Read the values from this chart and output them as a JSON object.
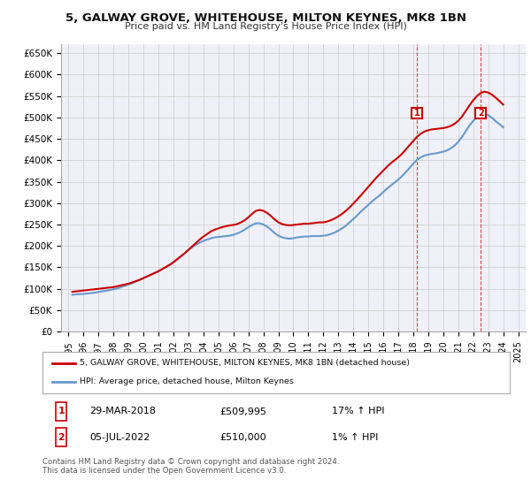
{
  "title": "5, GALWAY GROVE, WHITEHOUSE, MILTON KEYNES, MK8 1BN",
  "subtitle": "Price paid vs. HM Land Registry's House Price Index (HPI)",
  "ylabel_ticks": [
    "£0",
    "£50K",
    "£100K",
    "£150K",
    "£200K",
    "£250K",
    "£300K",
    "£350K",
    "£400K",
    "£450K",
    "£500K",
    "£550K",
    "£600K",
    "£650K"
  ],
  "ytick_vals": [
    0,
    50000,
    100000,
    150000,
    200000,
    250000,
    300000,
    350000,
    400000,
    450000,
    500000,
    550000,
    600000,
    650000
  ],
  "xlim": [
    1994.5,
    2025.5
  ],
  "ylim": [
    0,
    670000
  ],
  "house_color": "#cc0000",
  "hpi_color": "#6699cc",
  "marker1_color": "#cc0000",
  "marker2_color": "#cc0000",
  "legend_house": "5, GALWAY GROVE, WHITEHOUSE, MILTON KEYNES, MK8 1BN (detached house)",
  "legend_hpi": "HPI: Average price, detached house, Milton Keynes",
  "annotation1_label": "1",
  "annotation1_date": "29-MAR-2018",
  "annotation1_price": "£509,995",
  "annotation1_hpi": "17% ↑ HPI",
  "annotation2_label": "2",
  "annotation2_date": "05-JUL-2022",
  "annotation2_price": "£510,000",
  "annotation2_hpi": "1% ↑ HPI",
  "footer": "Contains HM Land Registry data © Crown copyright and database right 2024.\nThis data is licensed under the Open Government Licence v3.0.",
  "house_years": [
    1995.25,
    1995.5,
    1995.75,
    1996.0,
    1996.25,
    1996.5,
    1996.75,
    1997.0,
    1997.25,
    1997.5,
    1997.75,
    1998.0,
    1998.25,
    1998.5,
    1998.75,
    1999.0,
    1999.25,
    1999.5,
    1999.75,
    2000.0,
    2000.25,
    2000.5,
    2000.75,
    2001.0,
    2001.25,
    2001.5,
    2001.75,
    2002.0,
    2002.25,
    2002.5,
    2002.75,
    2003.0,
    2003.25,
    2003.5,
    2003.75,
    2004.0,
    2004.25,
    2004.5,
    2004.75,
    2005.0,
    2005.25,
    2005.5,
    2005.75,
    2006.0,
    2006.25,
    2006.5,
    2006.75,
    2007.0,
    2007.25,
    2007.5,
    2007.75,
    2008.0,
    2008.25,
    2008.5,
    2008.75,
    2009.0,
    2009.25,
    2009.5,
    2009.75,
    2010.0,
    2010.25,
    2010.5,
    2010.75,
    2011.0,
    2011.25,
    2011.5,
    2011.75,
    2012.0,
    2012.25,
    2012.5,
    2012.75,
    2013.0,
    2013.25,
    2013.5,
    2013.75,
    2014.0,
    2014.25,
    2014.5,
    2014.75,
    2015.0,
    2015.25,
    2015.5,
    2015.75,
    2016.0,
    2016.25,
    2016.5,
    2016.75,
    2017.0,
    2017.25,
    2017.5,
    2017.75,
    2018.0,
    2018.25,
    2018.5,
    2018.75,
    2019.0,
    2019.25,
    2019.5,
    2019.75,
    2020.0,
    2020.25,
    2020.5,
    2020.75,
    2021.0,
    2021.25,
    2021.5,
    2021.75,
    2022.0,
    2022.25,
    2022.5,
    2022.75,
    2023.0,
    2023.25,
    2023.5,
    2023.75,
    2024.0
  ],
  "house_prices": [
    93000,
    94000,
    95000,
    96000,
    97000,
    98000,
    99000,
    100000,
    101000,
    102000,
    103000,
    104000,
    106000,
    108000,
    110000,
    112000,
    115000,
    118000,
    121000,
    125000,
    129000,
    133000,
    137000,
    141000,
    146000,
    151000,
    156000,
    162000,
    169000,
    176000,
    183000,
    191000,
    199000,
    207000,
    215000,
    222000,
    228000,
    234000,
    238000,
    241000,
    244000,
    246000,
    248000,
    249000,
    251000,
    255000,
    260000,
    267000,
    275000,
    282000,
    284000,
    282000,
    277000,
    270000,
    262000,
    255000,
    251000,
    249000,
    248000,
    249000,
    250000,
    251000,
    252000,
    252000,
    253000,
    254000,
    255000,
    255000,
    257000,
    260000,
    264000,
    269000,
    275000,
    282000,
    290000,
    299000,
    308000,
    318000,
    328000,
    338000,
    348000,
    358000,
    367000,
    376000,
    385000,
    393000,
    400000,
    407000,
    415000,
    425000,
    435000,
    445000,
    455000,
    462000,
    467000,
    470000,
    472000,
    473000,
    474000,
    475000,
    477000,
    480000,
    485000,
    492000,
    502000,
    515000,
    528000,
    540000,
    550000,
    557000,
    560000,
    558000,
    553000,
    546000,
    538000,
    530000
  ],
  "hpi_years": [
    1995.25,
    1995.5,
    1995.75,
    1996.0,
    1996.25,
    1996.5,
    1996.75,
    1997.0,
    1997.25,
    1997.5,
    1997.75,
    1998.0,
    1998.25,
    1998.5,
    1998.75,
    1999.0,
    1999.25,
    1999.5,
    1999.75,
    2000.0,
    2000.25,
    2000.5,
    2000.75,
    2001.0,
    2001.25,
    2001.5,
    2001.75,
    2002.0,
    2002.25,
    2002.5,
    2002.75,
    2003.0,
    2003.25,
    2003.5,
    2003.75,
    2004.0,
    2004.25,
    2004.5,
    2004.75,
    2005.0,
    2005.25,
    2005.5,
    2005.75,
    2006.0,
    2006.25,
    2006.5,
    2006.75,
    2007.0,
    2007.25,
    2007.5,
    2007.75,
    2008.0,
    2008.25,
    2008.5,
    2008.75,
    2009.0,
    2009.25,
    2009.5,
    2009.75,
    2010.0,
    2010.25,
    2010.5,
    2010.75,
    2011.0,
    2011.25,
    2011.5,
    2011.75,
    2012.0,
    2012.25,
    2012.5,
    2012.75,
    2013.0,
    2013.25,
    2013.5,
    2013.75,
    2014.0,
    2014.25,
    2014.5,
    2014.75,
    2015.0,
    2015.25,
    2015.5,
    2015.75,
    2016.0,
    2016.25,
    2016.5,
    2016.75,
    2017.0,
    2017.25,
    2017.5,
    2017.75,
    2018.0,
    2018.25,
    2018.5,
    2018.75,
    2019.0,
    2019.25,
    2019.5,
    2019.75,
    2020.0,
    2020.25,
    2020.5,
    2020.75,
    2021.0,
    2021.25,
    2021.5,
    2021.75,
    2022.0,
    2022.25,
    2022.5,
    2022.75,
    2023.0,
    2023.25,
    2023.5,
    2023.75,
    2024.0
  ],
  "hpi_prices": [
    86000,
    87000,
    87500,
    88000,
    89000,
    90000,
    91000,
    92500,
    94000,
    95500,
    97000,
    99000,
    101000,
    104000,
    107000,
    110000,
    113000,
    117000,
    121000,
    125000,
    129000,
    133000,
    137000,
    141000,
    146000,
    151000,
    156000,
    162000,
    169000,
    176000,
    183000,
    191000,
    197000,
    203000,
    208000,
    212000,
    215000,
    218000,
    220000,
    221000,
    222000,
    223000,
    224000,
    226000,
    229000,
    233000,
    238000,
    244000,
    249000,
    253000,
    253000,
    250000,
    245000,
    238000,
    230000,
    224000,
    220000,
    218000,
    217000,
    218000,
    220000,
    221000,
    222000,
    222000,
    223000,
    223000,
    223000,
    224000,
    225000,
    228000,
    231000,
    236000,
    241000,
    247000,
    255000,
    263000,
    271000,
    280000,
    288000,
    296000,
    304000,
    311000,
    318000,
    326000,
    334000,
    341000,
    348000,
    355000,
    363000,
    372000,
    382000,
    392000,
    401000,
    407000,
    411000,
    413000,
    415000,
    416000,
    418000,
    420000,
    423000,
    428000,
    434000,
    443000,
    454000,
    468000,
    481000,
    492000,
    500000,
    506000,
    508000,
    505000,
    499000,
    491000,
    484000,
    477000
  ],
  "marker1_x": 2018.25,
  "marker1_y": 509995,
  "marker2_x": 2022.5,
  "marker2_y": 510000,
  "xtick_years": [
    1995,
    1996,
    1997,
    1998,
    1999,
    2000,
    2001,
    2002,
    2003,
    2004,
    2005,
    2006,
    2007,
    2008,
    2009,
    2010,
    2011,
    2012,
    2013,
    2014,
    2015,
    2016,
    2017,
    2018,
    2019,
    2020,
    2021,
    2022,
    2023,
    2024,
    2025
  ],
  "background_color": "#ffffff",
  "grid_color": "#cccccc",
  "plot_bg": "#f0f0f8"
}
